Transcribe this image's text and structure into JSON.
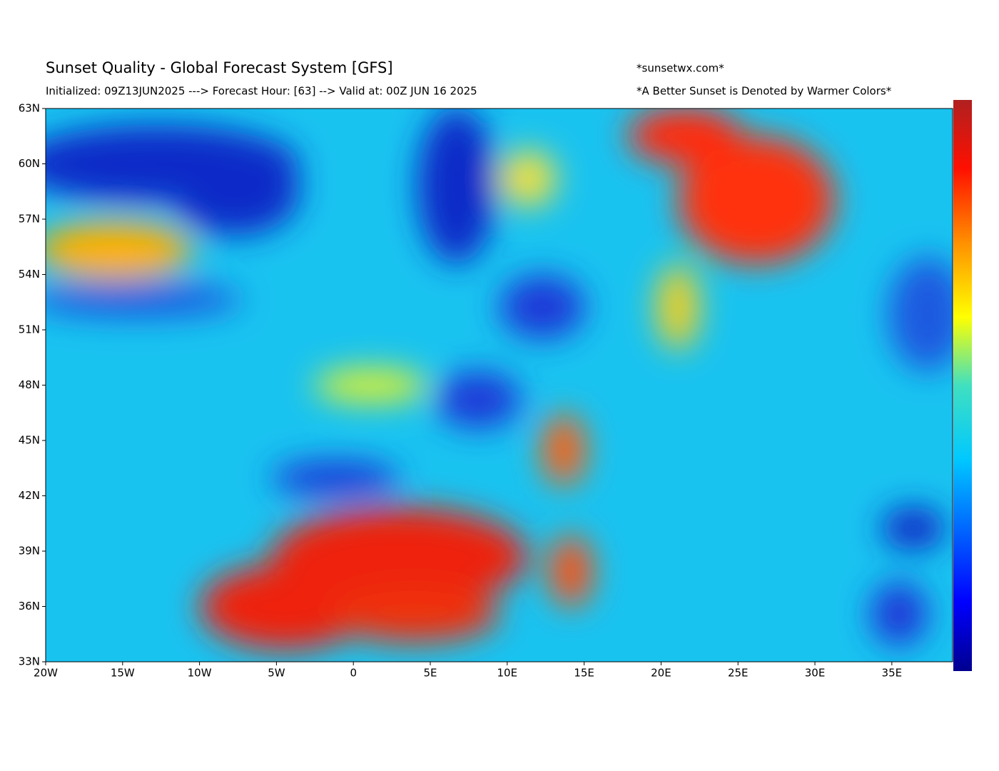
{
  "header": {
    "title": "Sunset Quality - Global Forecast System [GFS]",
    "subtitle": "Initialized: 09Z13JUN2025 ---> Forecast Hour: [63] --> Valid at: 00Z  JUN 16 2025",
    "site": "*sunsetwx.com*",
    "note": "*A Better Sunset is Denoted by Warmer Colors*"
  },
  "map": {
    "xlim": [
      -20,
      38.95
    ],
    "ylim": [
      33,
      63
    ],
    "lon_ticks": [
      {
        "value": -20,
        "label": "20W"
      },
      {
        "value": -15,
        "label": "15W"
      },
      {
        "value": -10,
        "label": "10W"
      },
      {
        "value": -5,
        "label": "5W"
      },
      0,
      {
        "value": 5,
        "label": "5E"
      },
      {
        "value": 10,
        "label": "10E"
      },
      {
        "value": 15,
        "label": "15E"
      },
      {
        "value": 20,
        "label": "20E"
      },
      {
        "value": 25,
        "label": "25E"
      },
      {
        "value": 30,
        "label": "30E"
      },
      {
        "value": 35,
        "label": "35E"
      }
    ],
    "lat_ticks": [
      {
        "value": 33,
        "label": "33N"
      },
      {
        "value": 36,
        "label": "36N"
      },
      {
        "value": 39,
        "label": "39N"
      },
      {
        "value": 42,
        "label": "42N"
      },
      {
        "value": 45,
        "label": "45N"
      },
      {
        "value": 48,
        "label": "48N"
      },
      {
        "value": 51,
        "label": "51N"
      },
      {
        "value": 54,
        "label": "54N"
      },
      {
        "value": 57,
        "label": "57N"
      },
      {
        "value": 60,
        "label": "60N"
      },
      {
        "value": 63,
        "label": "63N"
      }
    ]
  }
}
